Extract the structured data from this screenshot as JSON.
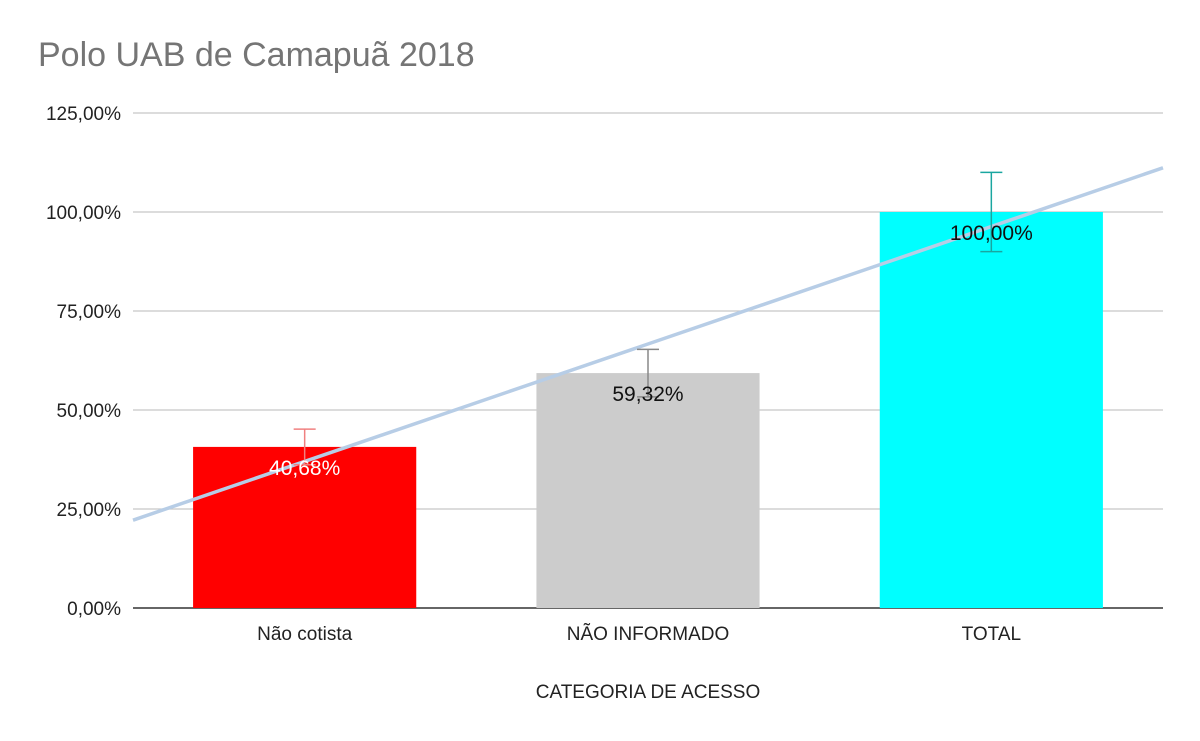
{
  "chart_data": {
    "type": "bar",
    "title": "Polo UAB de Camapuã 2018",
    "xlabel": "CATEGORIA DE ACESSO",
    "ylabel": "",
    "ylim": [
      0,
      125
    ],
    "yticks": [
      0,
      25,
      50,
      75,
      100,
      125
    ],
    "ytick_labels": [
      "0,00%",
      "25,00%",
      "50,00%",
      "75,00%",
      "100,00%",
      "125,00%"
    ],
    "categories": [
      "Não cotista",
      "NÃO INFORMADO",
      "TOTAL"
    ],
    "values": [
      40.68,
      59.32,
      100.0
    ],
    "data_labels": [
      "40,68%",
      "59,32%",
      "100,00%"
    ],
    "error_plus": [
      4.5,
      6.0,
      10.0
    ],
    "error_minus": [
      4.5,
      6.0,
      10.0
    ],
    "bar_colors": [
      "#ff0000",
      "#cccccc",
      "#00ffff"
    ],
    "label_colors": [
      "#ffffff",
      "#111111",
      "#111111"
    ],
    "error_colors": [
      "#f08080",
      "#888888",
      "#1aa6a0"
    ],
    "trendline": {
      "type": "linear",
      "color": "#b7cde6"
    },
    "grid": true,
    "legend": "none"
  }
}
